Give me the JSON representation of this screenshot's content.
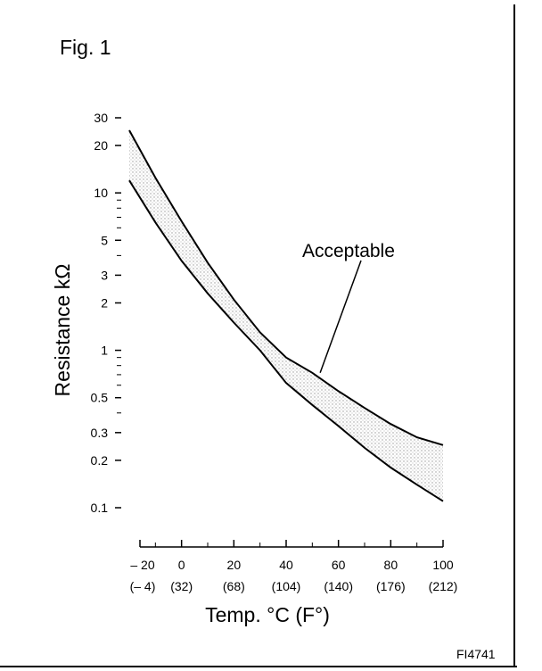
{
  "chart_data": {
    "type": "line",
    "title": "Fig. 1",
    "xlabel": "Temp. °C (F°)",
    "ylabel": "Resistance kΩ",
    "x_ticks": [
      {
        "value": -20,
        "label": "– 20",
        "sublabel": "(– 4)"
      },
      {
        "value": 0,
        "label": "0",
        "sublabel": "(32)"
      },
      {
        "value": 20,
        "label": "20",
        "sublabel": "(68)"
      },
      {
        "value": 40,
        "label": "40",
        "sublabel": "(104)"
      },
      {
        "value": 60,
        "label": "60",
        "sublabel": "(140)"
      },
      {
        "value": 80,
        "label": "80",
        "sublabel": "(176)"
      },
      {
        "value": 100,
        "label": "100",
        "sublabel": "(212)"
      }
    ],
    "y_scale": "log",
    "y_ticks": [
      {
        "value": 0.1,
        "label": "0.1"
      },
      {
        "value": 0.2,
        "label": "0.2"
      },
      {
        "value": 0.3,
        "label": "0.3"
      },
      {
        "value": 0.5,
        "label": "0.5"
      },
      {
        "value": 1,
        "label": "1"
      },
      {
        "value": 2,
        "label": "2"
      },
      {
        "value": 3,
        "label": "3"
      },
      {
        "value": 5,
        "label": "5"
      },
      {
        "value": 10,
        "label": "10"
      },
      {
        "value": 20,
        "label": "20"
      },
      {
        "value": 30,
        "label": "30"
      }
    ],
    "y_minor_ticks": [
      0.4,
      0.6,
      0.7,
      0.8,
      0.9,
      4,
      6,
      7,
      8,
      9
    ],
    "xlim": [
      -20,
      100
    ],
    "ylim": [
      0.1,
      30
    ],
    "series": [
      {
        "x": [
          -20,
          -10,
          0,
          10,
          20,
          30,
          40,
          50,
          60,
          70,
          80,
          90,
          100
        ],
        "y": [
          25,
          12.5,
          6.6,
          3.6,
          2.1,
          1.3,
          0.9,
          0.72,
          0.55,
          0.43,
          0.34,
          0.28,
          0.25
        ]
      },
      {
        "x": [
          -20,
          -10,
          0,
          10,
          20,
          30,
          40,
          50,
          60,
          70,
          80,
          90,
          100
        ],
        "y": [
          12,
          6.5,
          3.7,
          2.3,
          1.5,
          1.0,
          0.62,
          0.45,
          0.33,
          0.24,
          0.18,
          0.14,
          0.11
        ]
      }
    ],
    "band_between_series": true,
    "annotation": {
      "text": "Acceptable",
      "points_to": {
        "x": 53,
        "y": 0.72
      }
    },
    "grid": false,
    "legend": "none"
  },
  "figure_ref": "FI4741",
  "colors": {
    "line": "#000000",
    "band": "#d8d8d8",
    "background": "#ffffff"
  }
}
